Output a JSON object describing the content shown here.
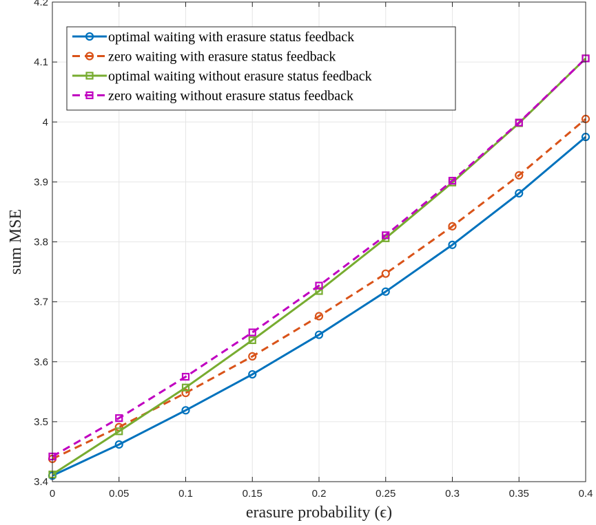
{
  "chart_data": {
    "type": "line",
    "xlabel": "erasure probability (ϵ)",
    "ylabel": "sum MSE",
    "xlim": [
      0,
      0.4
    ],
    "ylim": [
      3.4,
      4.2
    ],
    "x_ticks": [
      "0",
      "0.05",
      "0.1",
      "0.15",
      "0.2",
      "0.25",
      "0.3",
      "0.35",
      "0.4"
    ],
    "y_ticks": [
      "3.4",
      "3.5",
      "3.6",
      "3.7",
      "3.8",
      "3.9",
      "4",
      "4.1",
      "4.2"
    ],
    "grid": true,
    "legend_position": "top-left",
    "x": [
      0,
      0.05,
      0.1,
      0.15,
      0.2,
      0.25,
      0.3,
      0.35,
      0.4
    ],
    "series": [
      {
        "name": "optimal waiting with erasure status feedback",
        "color": "#0072BD",
        "line_style": "solid",
        "marker": "circle",
        "values": [
          3.41,
          3.462,
          3.519,
          3.579,
          3.645,
          3.717,
          3.795,
          3.881,
          3.975
        ]
      },
      {
        "name": "zero waiting with erasure status feedback",
        "color": "#D95319",
        "line_style": "dashed",
        "marker": "circle",
        "values": [
          3.438,
          3.491,
          3.548,
          3.609,
          3.676,
          3.747,
          3.826,
          3.911,
          4.005
        ]
      },
      {
        "name": "optimal waiting without erasure status feedback",
        "color": "#77AC30",
        "line_style": "solid",
        "marker": "square",
        "values": [
          3.412,
          3.484,
          3.557,
          3.636,
          3.718,
          3.806,
          3.899,
          3.998,
          4.106
        ]
      },
      {
        "name": "zero waiting without erasure status feedback",
        "color": "#C000C0",
        "line_style": "dashed",
        "marker": "square",
        "values": [
          3.442,
          3.506,
          3.575,
          3.649,
          3.727,
          3.811,
          3.902,
          3.999,
          4.106
        ]
      }
    ]
  }
}
